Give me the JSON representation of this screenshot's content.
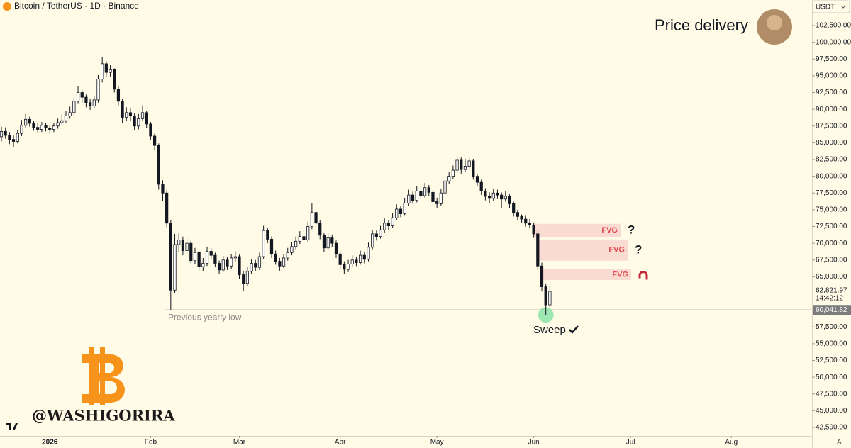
{
  "header": {
    "symbol": "Bitcoin / TetherUS · 1D · Binance",
    "currency": "USDT"
  },
  "chart_data": {
    "type": "candlestick",
    "title": "Price delivery",
    "up_color": "#ffffff",
    "down_color": "#131722",
    "ohlc": [
      [
        85900,
        87400,
        85200,
        86700
      ],
      [
        86700,
        87300,
        85600,
        86100
      ],
      [
        86100,
        86600,
        84800,
        85500
      ],
      [
        85500,
        86200,
        84400,
        85200
      ],
      [
        85200,
        86900,
        84900,
        86400
      ],
      [
        86400,
        88400,
        86000,
        87600
      ],
      [
        87600,
        89300,
        87200,
        88500
      ],
      [
        88500,
        88900,
        87400,
        87900
      ],
      [
        87900,
        88300,
        86800,
        87300
      ],
      [
        87300,
        87900,
        86500,
        87000
      ],
      [
        87000,
        88100,
        86600,
        87600
      ],
      [
        87600,
        88000,
        86700,
        87200
      ],
      [
        87200,
        87700,
        86400,
        87000
      ],
      [
        87000,
        88000,
        86600,
        87500
      ],
      [
        87500,
        88600,
        87100,
        88000
      ],
      [
        88000,
        89200,
        87600,
        88300
      ],
      [
        88300,
        89800,
        87900,
        89000
      ],
      [
        89000,
        90400,
        88600,
        89500
      ],
      [
        89500,
        91800,
        89100,
        91200
      ],
      [
        91200,
        93400,
        90800,
        92500
      ],
      [
        92500,
        92900,
        91000,
        91800
      ],
      [
        91800,
        92200,
        90300,
        91000
      ],
      [
        91000,
        91600,
        89900,
        90500
      ],
      [
        90500,
        92000,
        90100,
        91400
      ],
      [
        91400,
        95100,
        91000,
        94500
      ],
      [
        94500,
        97800,
        94000,
        96800
      ],
      [
        96800,
        97200,
        94800,
        95500
      ],
      [
        95500,
        96600,
        94900,
        95900
      ],
      [
        95900,
        96100,
        92500,
        93000
      ],
      [
        93000,
        93500,
        90600,
        91200
      ],
      [
        91200,
        91600,
        88000,
        88800
      ],
      [
        88800,
        90300,
        88200,
        89500
      ],
      [
        89500,
        90100,
        88300,
        89000
      ],
      [
        89000,
        89400,
        86900,
        87500
      ],
      [
        87500,
        89300,
        87000,
        88600
      ],
      [
        88600,
        90600,
        88200,
        89500
      ],
      [
        89500,
        89800,
        87200,
        87800
      ],
      [
        87800,
        88100,
        85400,
        86000
      ],
      [
        86000,
        86400,
        83900,
        84600
      ],
      [
        84600,
        84900,
        78000,
        78800
      ],
      [
        78800,
        79400,
        76300,
        77500
      ],
      [
        77500,
        77900,
        72400,
        73000
      ],
      [
        73000,
        73400,
        60000,
        63000
      ],
      [
        63000,
        71400,
        62600,
        69800
      ],
      [
        69800,
        71600,
        68700,
        70500
      ],
      [
        70500,
        71000,
        68200,
        68900
      ],
      [
        68900,
        70800,
        68300,
        70000
      ],
      [
        70000,
        70400,
        66800,
        67400
      ],
      [
        67400,
        69300,
        66900,
        68600
      ],
      [
        68600,
        68900,
        65900,
        66500
      ],
      [
        66500,
        67800,
        65800,
        67000
      ],
      [
        67000,
        69500,
        66600,
        68800
      ],
      [
        68800,
        69300,
        67600,
        68200
      ],
      [
        68200,
        68600,
        66500,
        67000
      ],
      [
        67000,
        67400,
        65400,
        66000
      ],
      [
        66000,
        68100,
        65700,
        67500
      ],
      [
        67500,
        68000,
        66000,
        66600
      ],
      [
        66600,
        68400,
        66200,
        67800
      ],
      [
        67800,
        68800,
        67200,
        68000
      ],
      [
        68000,
        68300,
        64700,
        65300
      ],
      [
        65300,
        65800,
        62800,
        64000
      ],
      [
        64000,
        66400,
        63600,
        65800
      ],
      [
        65800,
        67600,
        65400,
        67000
      ],
      [
        67000,
        67500,
        65900,
        66400
      ],
      [
        66400,
        68600,
        66000,
        68000
      ],
      [
        68000,
        72600,
        67600,
        71900
      ],
      [
        71900,
        72300,
        70000,
        70600
      ],
      [
        70600,
        71000,
        67800,
        68400
      ],
      [
        68400,
        68900,
        66800,
        67300
      ],
      [
        67300,
        67800,
        65900,
        66600
      ],
      [
        66600,
        68400,
        66300,
        67800
      ],
      [
        67800,
        69300,
        67400,
        68600
      ],
      [
        68600,
        70200,
        68200,
        69500
      ],
      [
        69500,
        71000,
        69100,
        70300
      ],
      [
        70300,
        71800,
        69900,
        71000
      ],
      [
        71000,
        71500,
        69800,
        70500
      ],
      [
        70500,
        73200,
        70200,
        72500
      ],
      [
        72500,
        76000,
        72100,
        74600
      ],
      [
        74600,
        75000,
        72400,
        73000
      ],
      [
        73000,
        73400,
        70600,
        71200
      ],
      [
        71200,
        71600,
        68700,
        69300
      ],
      [
        69300,
        71500,
        69000,
        70800
      ],
      [
        70800,
        71300,
        69400,
        70000
      ],
      [
        70000,
        70400,
        67800,
        68400
      ],
      [
        68400,
        68800,
        66200,
        66800
      ],
      [
        66800,
        67300,
        65400,
        66100
      ],
      [
        66100,
        67500,
        65700,
        66900
      ],
      [
        66900,
        68200,
        66500,
        67500
      ],
      [
        67500,
        68000,
        66600,
        67100
      ],
      [
        67100,
        68900,
        66800,
        68200
      ],
      [
        68200,
        68700,
        67000,
        67600
      ],
      [
        67600,
        70100,
        67300,
        69400
      ],
      [
        69400,
        72000,
        69100,
        71400
      ],
      [
        71400,
        71900,
        70400,
        71000
      ],
      [
        71000,
        72600,
        70700,
        72000
      ],
      [
        72000,
        73700,
        71600,
        73000
      ],
      [
        73000,
        73500,
        72000,
        72600
      ],
      [
        72600,
        74500,
        72300,
        73800
      ],
      [
        73800,
        75800,
        73500,
        75100
      ],
      [
        75100,
        75600,
        73900,
        74400
      ],
      [
        74400,
        76700,
        74100,
        76000
      ],
      [
        76000,
        78000,
        75600,
        77200
      ],
      [
        77200,
        77700,
        75900,
        76400
      ],
      [
        76400,
        78500,
        76100,
        77800
      ],
      [
        77800,
        78300,
        76600,
        77100
      ],
      [
        77100,
        79000,
        76800,
        78300
      ],
      [
        78300,
        78700,
        77000,
        77600
      ],
      [
        77600,
        78000,
        75500,
        76200
      ],
      [
        76200,
        76800,
        75200,
        75900
      ],
      [
        75900,
        78100,
        75600,
        77500
      ],
      [
        77500,
        79900,
        77200,
        79300
      ],
      [
        79300,
        80700,
        78900,
        80000
      ],
      [
        80000,
        81600,
        79600,
        80900
      ],
      [
        80900,
        83000,
        80500,
        82400
      ],
      [
        82400,
        82800,
        80400,
        81000
      ],
      [
        81000,
        82500,
        80600,
        81500
      ],
      [
        81500,
        82900,
        81100,
        82300
      ],
      [
        82300,
        82600,
        79500,
        80000
      ],
      [
        80000,
        80400,
        78500,
        79100
      ],
      [
        79100,
        79500,
        77200,
        77800
      ],
      [
        77800,
        78200,
        76400,
        77000
      ],
      [
        77000,
        77600,
        76000,
        76700
      ],
      [
        76700,
        78100,
        76300,
        77500
      ],
      [
        77500,
        78000,
        76600,
        77200
      ],
      [
        77200,
        77600,
        75300,
        76600
      ],
      [
        76600,
        77800,
        76200,
        77000
      ],
      [
        77000,
        77300,
        75300,
        75900
      ],
      [
        75900,
        76200,
        74000,
        74600
      ],
      [
        74600,
        75000,
        73400,
        74000
      ],
      [
        74000,
        74300,
        73000,
        73600
      ],
      [
        73600,
        74100,
        72500,
        73000
      ],
      [
        73000,
        73600,
        72200,
        72700
      ],
      [
        72700,
        73100,
        70800,
        71400
      ],
      [
        71400,
        71800,
        66000,
        66600
      ],
      [
        66600,
        67100,
        62800,
        63500
      ],
      [
        63500,
        64000,
        59300,
        60800
      ],
      [
        60800,
        63600,
        60300,
        62821.97
      ]
    ],
    "xlim": [
      0,
      201
    ],
    "xticks": [
      {
        "value": 12,
        "label": "2026"
      },
      {
        "value": 37,
        "label": "Feb"
      },
      {
        "value": 59,
        "label": "Mar"
      },
      {
        "value": 84,
        "label": "Apr"
      },
      {
        "value": 108,
        "label": "May"
      },
      {
        "value": 132,
        "label": "Jun"
      },
      {
        "value": 156,
        "label": "Jul"
      },
      {
        "value": 181,
        "label": "Aug"
      }
    ],
    "ylim": [
      41230,
      106310
    ],
    "yticks": [
      {
        "value": 102500,
        "label": "102,500.00"
      },
      {
        "value": 100000,
        "label": "100,000.00"
      },
      {
        "value": 97500,
        "label": "97,500.00"
      },
      {
        "value": 95000,
        "label": "95,000.00"
      },
      {
        "value": 92500,
        "label": "92,500.00"
      },
      {
        "value": 90000,
        "label": "90,000.00"
      },
      {
        "value": 87500,
        "label": "87,500.00"
      },
      {
        "value": 85000,
        "label": "85,000.00"
      },
      {
        "value": 82500,
        "label": "82,500.00"
      },
      {
        "value": 80000,
        "label": "80,000.00"
      },
      {
        "value": 77500,
        "label": "77,500.00"
      },
      {
        "value": 75000,
        "label": "75,000.00"
      },
      {
        "value": 72500,
        "label": "72,500.00"
      },
      {
        "value": 70000,
        "label": "70,000.00"
      },
      {
        "value": 67500,
        "label": "67,500.00"
      },
      {
        "value": 65000,
        "label": "65,000.00"
      },
      {
        "value": 57500,
        "label": "57,500.00"
      },
      {
        "value": 55000,
        "label": "55,000.00"
      },
      {
        "value": 52500,
        "label": "52,500.00"
      },
      {
        "value": 50000,
        "label": "50,000.00"
      },
      {
        "value": 47500,
        "label": "47,500.00"
      },
      {
        "value": 45000,
        "label": "45,000.00"
      },
      {
        "value": 42500,
        "label": "42,500.00"
      }
    ],
    "level": {
      "value": 60041.82,
      "label": "60,041.82",
      "text": "Previous yearly low"
    },
    "last_price": {
      "value": 62821.97,
      "label": "62,821.97",
      "countdown": "14:42:12"
    },
    "zones": [
      {
        "label": "FVG",
        "top": 72900,
        "bottom": 70900,
        "note": "?"
      },
      {
        "label": "FVG",
        "top": 70550,
        "bottom": 67400,
        "note": "?"
      },
      {
        "label": "FVG",
        "top": 66100,
        "bottom": 64500
      }
    ],
    "annotation": "Sweep"
  },
  "watermark": "@WASHIGORIRA",
  "corner": "A"
}
